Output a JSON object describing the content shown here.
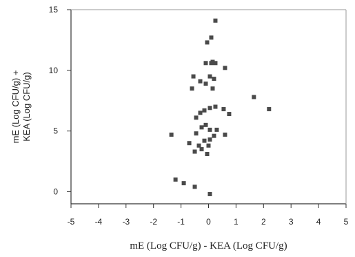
{
  "chart_data": {
    "type": "scatter",
    "title": "",
    "xlabel": "mE (Log CFU/g) - KEA (Log CFU/g)",
    "ylabel_lines": [
      "mE (Log CFU/g) +",
      "KEA (Log CFU/g)"
    ],
    "xlim": [
      -5,
      5
    ],
    "ylim": [
      -1,
      15
    ],
    "xticks": [
      -5,
      -4,
      -3,
      -2,
      -1,
      0,
      1,
      2,
      3,
      4,
      5
    ],
    "yticks": [
      0,
      5,
      10,
      15
    ],
    "grid": false,
    "legend": "none",
    "marker_color": "#4a4a4a",
    "points": [
      {
        "x": 0.25,
        "y": 14.1
      },
      {
        "x": 0.1,
        "y": 12.7
      },
      {
        "x": -0.05,
        "y": 12.3
      },
      {
        "x": -0.1,
        "y": 10.6
      },
      {
        "x": 0.1,
        "y": 10.6
      },
      {
        "x": 0.15,
        "y": 10.7
      },
      {
        "x": 0.25,
        "y": 10.6
      },
      {
        "x": 0.6,
        "y": 10.2
      },
      {
        "x": -0.55,
        "y": 9.5
      },
      {
        "x": 0.05,
        "y": 9.5
      },
      {
        "x": 0.2,
        "y": 9.3
      },
      {
        "x": -0.3,
        "y": 9.1
      },
      {
        "x": -0.1,
        "y": 8.9
      },
      {
        "x": -0.6,
        "y": 8.5
      },
      {
        "x": 0.15,
        "y": 8.5
      },
      {
        "x": 1.65,
        "y": 7.8
      },
      {
        "x": 2.2,
        "y": 6.8
      },
      {
        "x": 0.25,
        "y": 7.0
      },
      {
        "x": 0.05,
        "y": 6.9
      },
      {
        "x": -0.15,
        "y": 6.7
      },
      {
        "x": 0.55,
        "y": 6.8
      },
      {
        "x": -0.3,
        "y": 6.5
      },
      {
        "x": 0.75,
        "y": 6.4
      },
      {
        "x": -0.45,
        "y": 6.1
      },
      {
        "x": -1.35,
        "y": 4.7
      },
      {
        "x": -0.1,
        "y": 5.5
      },
      {
        "x": -0.25,
        "y": 5.3
      },
      {
        "x": 0.05,
        "y": 5.1
      },
      {
        "x": 0.3,
        "y": 5.1
      },
      {
        "x": 0.6,
        "y": 4.7
      },
      {
        "x": -0.45,
        "y": 4.8
      },
      {
        "x": 0.2,
        "y": 4.6
      },
      {
        "x": 0.05,
        "y": 4.3
      },
      {
        "x": -0.15,
        "y": 4.2
      },
      {
        "x": -0.7,
        "y": 4.0
      },
      {
        "x": -0.35,
        "y": 3.8
      },
      {
        "x": 0.0,
        "y": 3.8
      },
      {
        "x": -0.5,
        "y": 3.3
      },
      {
        "x": -0.25,
        "y": 3.5
      },
      {
        "x": -0.05,
        "y": 3.1
      },
      {
        "x": -1.2,
        "y": 1.0
      },
      {
        "x": -0.9,
        "y": 0.7
      },
      {
        "x": -0.5,
        "y": 0.4
      },
      {
        "x": 0.05,
        "y": -0.2
      }
    ]
  }
}
